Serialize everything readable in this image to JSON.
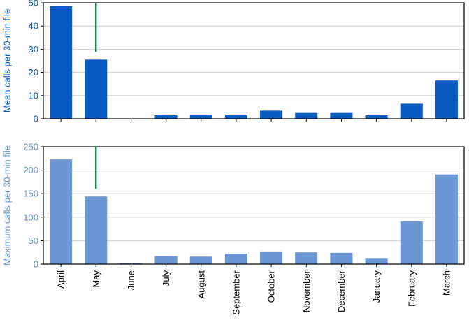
{
  "chart_data": [
    {
      "type": "bar",
      "categories": [
        "April",
        "May",
        "June",
        "July",
        "August",
        "September",
        "October",
        "November",
        "December",
        "January",
        "February",
        "March"
      ],
      "values": [
        48.5,
        25.5,
        0,
        1.5,
        1.5,
        1.5,
        3.5,
        2.5,
        2.5,
        1.5,
        6.5,
        16.5
      ],
      "xlabel": "",
      "ylabel": "Mean calls per 30-min file",
      "ylim": [
        0,
        50
      ],
      "yticks": [
        0,
        10,
        20,
        30,
        40,
        50
      ],
      "grid": true,
      "bar_color": "#0a5cc2",
      "label_color": "#0a5cc2",
      "marker": {
        "category": "May",
        "color": "#16884a"
      }
    },
    {
      "type": "bar",
      "categories": [
        "April",
        "May",
        "June",
        "July",
        "August",
        "September",
        "October",
        "November",
        "December",
        "January",
        "February",
        "March"
      ],
      "values": [
        223,
        144,
        2,
        17,
        16,
        22,
        27,
        25,
        24,
        13,
        91,
        191
      ],
      "xlabel": "",
      "ylabel": "Maximum calls per 30-min file",
      "ylim": [
        0,
        250
      ],
      "yticks": [
        0,
        50,
        100,
        150,
        200,
        250
      ],
      "grid": true,
      "bar_color": "#6b97d4",
      "label_color": "#6b97d4",
      "marker": {
        "category": "May",
        "color": "#16884a"
      }
    }
  ]
}
